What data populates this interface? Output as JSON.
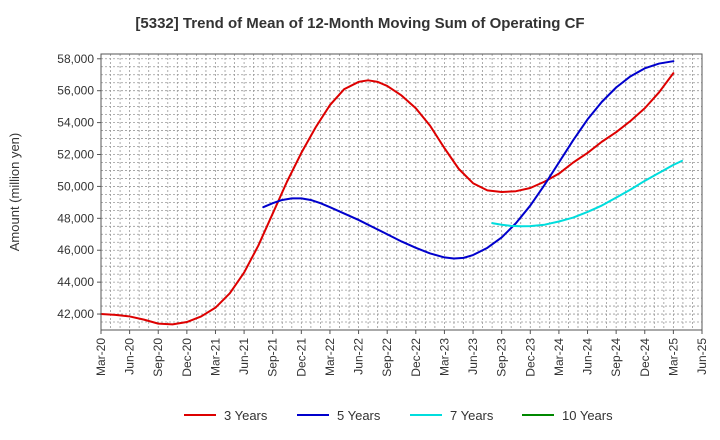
{
  "chart_data": {
    "type": "line",
    "title": "[5332]  Trend of Mean of 12-Month Moving Sum of Operating CF",
    "xlabel": "",
    "ylabel": "Amount (million yen)",
    "ylim": [
      41000,
      58300
    ],
    "yticks": [
      42000,
      44000,
      46000,
      48000,
      50000,
      52000,
      54000,
      56000,
      58000
    ],
    "ytick_labels": [
      "42,000",
      "44,000",
      "46,000",
      "48,000",
      "50,000",
      "52,000",
      "54,000",
      "56,000",
      "58,000"
    ],
    "xticks": [
      "Mar-20",
      "Jun-20",
      "Sep-20",
      "Dec-20",
      "Mar-21",
      "Jun-21",
      "Sep-21",
      "Dec-21",
      "Mar-22",
      "Jun-22",
      "Sep-22",
      "Dec-22",
      "Mar-23",
      "Jun-23",
      "Sep-23",
      "Dec-23",
      "Mar-24",
      "Jun-24",
      "Sep-24",
      "Dec-24",
      "Mar-25",
      "Jun-25"
    ],
    "grid": true,
    "legend_position": "bottom",
    "series": [
      {
        "name": "3 Years",
        "color": "#dd0000",
        "points": [
          [
            0,
            42000
          ],
          [
            0.5,
            41950
          ],
          [
            1,
            41850
          ],
          [
            1.5,
            41650
          ],
          [
            2,
            41400
          ],
          [
            2.5,
            41350
          ],
          [
            3,
            41500
          ],
          [
            3.5,
            41850
          ],
          [
            4,
            42400
          ],
          [
            4.5,
            43300
          ],
          [
            5,
            44600
          ],
          [
            5.5,
            46300
          ],
          [
            6,
            48300
          ],
          [
            6.5,
            50300
          ],
          [
            7,
            52100
          ],
          [
            7.5,
            53700
          ],
          [
            8,
            55100
          ],
          [
            8.5,
            56100
          ],
          [
            9,
            56550
          ],
          [
            9.33,
            56650
          ],
          [
            9.67,
            56550
          ],
          [
            10,
            56300
          ],
          [
            10.5,
            55700
          ],
          [
            11,
            54900
          ],
          [
            11.5,
            53800
          ],
          [
            12,
            52400
          ],
          [
            12.5,
            51100
          ],
          [
            13,
            50200
          ],
          [
            13.5,
            49750
          ],
          [
            14,
            49650
          ],
          [
            14.5,
            49700
          ],
          [
            15,
            49900
          ],
          [
            15.5,
            50300
          ],
          [
            16,
            50800
          ],
          [
            16.5,
            51500
          ],
          [
            17,
            52100
          ],
          [
            17.5,
            52800
          ],
          [
            18,
            53400
          ],
          [
            18.5,
            54100
          ],
          [
            19,
            54900
          ],
          [
            19.5,
            55900
          ],
          [
            20,
            57100
          ]
        ]
      },
      {
        "name": "5 Years",
        "color": "#0000cc",
        "points": [
          [
            5.67,
            48700
          ],
          [
            6,
            48950
          ],
          [
            6.33,
            49150
          ],
          [
            6.67,
            49250
          ],
          [
            7,
            49250
          ],
          [
            7.33,
            49150
          ],
          [
            7.67,
            48950
          ],
          [
            8,
            48700
          ],
          [
            8.5,
            48300
          ],
          [
            9,
            47900
          ],
          [
            9.5,
            47450
          ],
          [
            10,
            47000
          ],
          [
            10.5,
            46550
          ],
          [
            11,
            46150
          ],
          [
            11.5,
            45800
          ],
          [
            12,
            45550
          ],
          [
            12.33,
            45480
          ],
          [
            12.67,
            45520
          ],
          [
            13,
            45700
          ],
          [
            13.5,
            46150
          ],
          [
            14,
            46800
          ],
          [
            14.5,
            47700
          ],
          [
            15,
            48800
          ],
          [
            15.5,
            50100
          ],
          [
            16,
            51500
          ],
          [
            16.5,
            52900
          ],
          [
            17,
            54200
          ],
          [
            17.5,
            55300
          ],
          [
            18,
            56200
          ],
          [
            18.5,
            56900
          ],
          [
            19,
            57400
          ],
          [
            19.5,
            57700
          ],
          [
            20,
            57850
          ]
        ]
      },
      {
        "name": "7 Years",
        "color": "#00dddd",
        "points": [
          [
            13.67,
            47700
          ],
          [
            14,
            47600
          ],
          [
            14.33,
            47530
          ],
          [
            14.67,
            47500
          ],
          [
            15,
            47510
          ],
          [
            15.5,
            47600
          ],
          [
            16,
            47800
          ],
          [
            16.5,
            48050
          ],
          [
            17,
            48400
          ],
          [
            17.5,
            48800
          ],
          [
            18,
            49300
          ],
          [
            18.5,
            49800
          ],
          [
            19,
            50350
          ],
          [
            19.5,
            50850
          ],
          [
            20,
            51350
          ],
          [
            20.3,
            51600
          ]
        ]
      },
      {
        "name": "10 Years",
        "color": "#008800",
        "points": []
      }
    ]
  }
}
